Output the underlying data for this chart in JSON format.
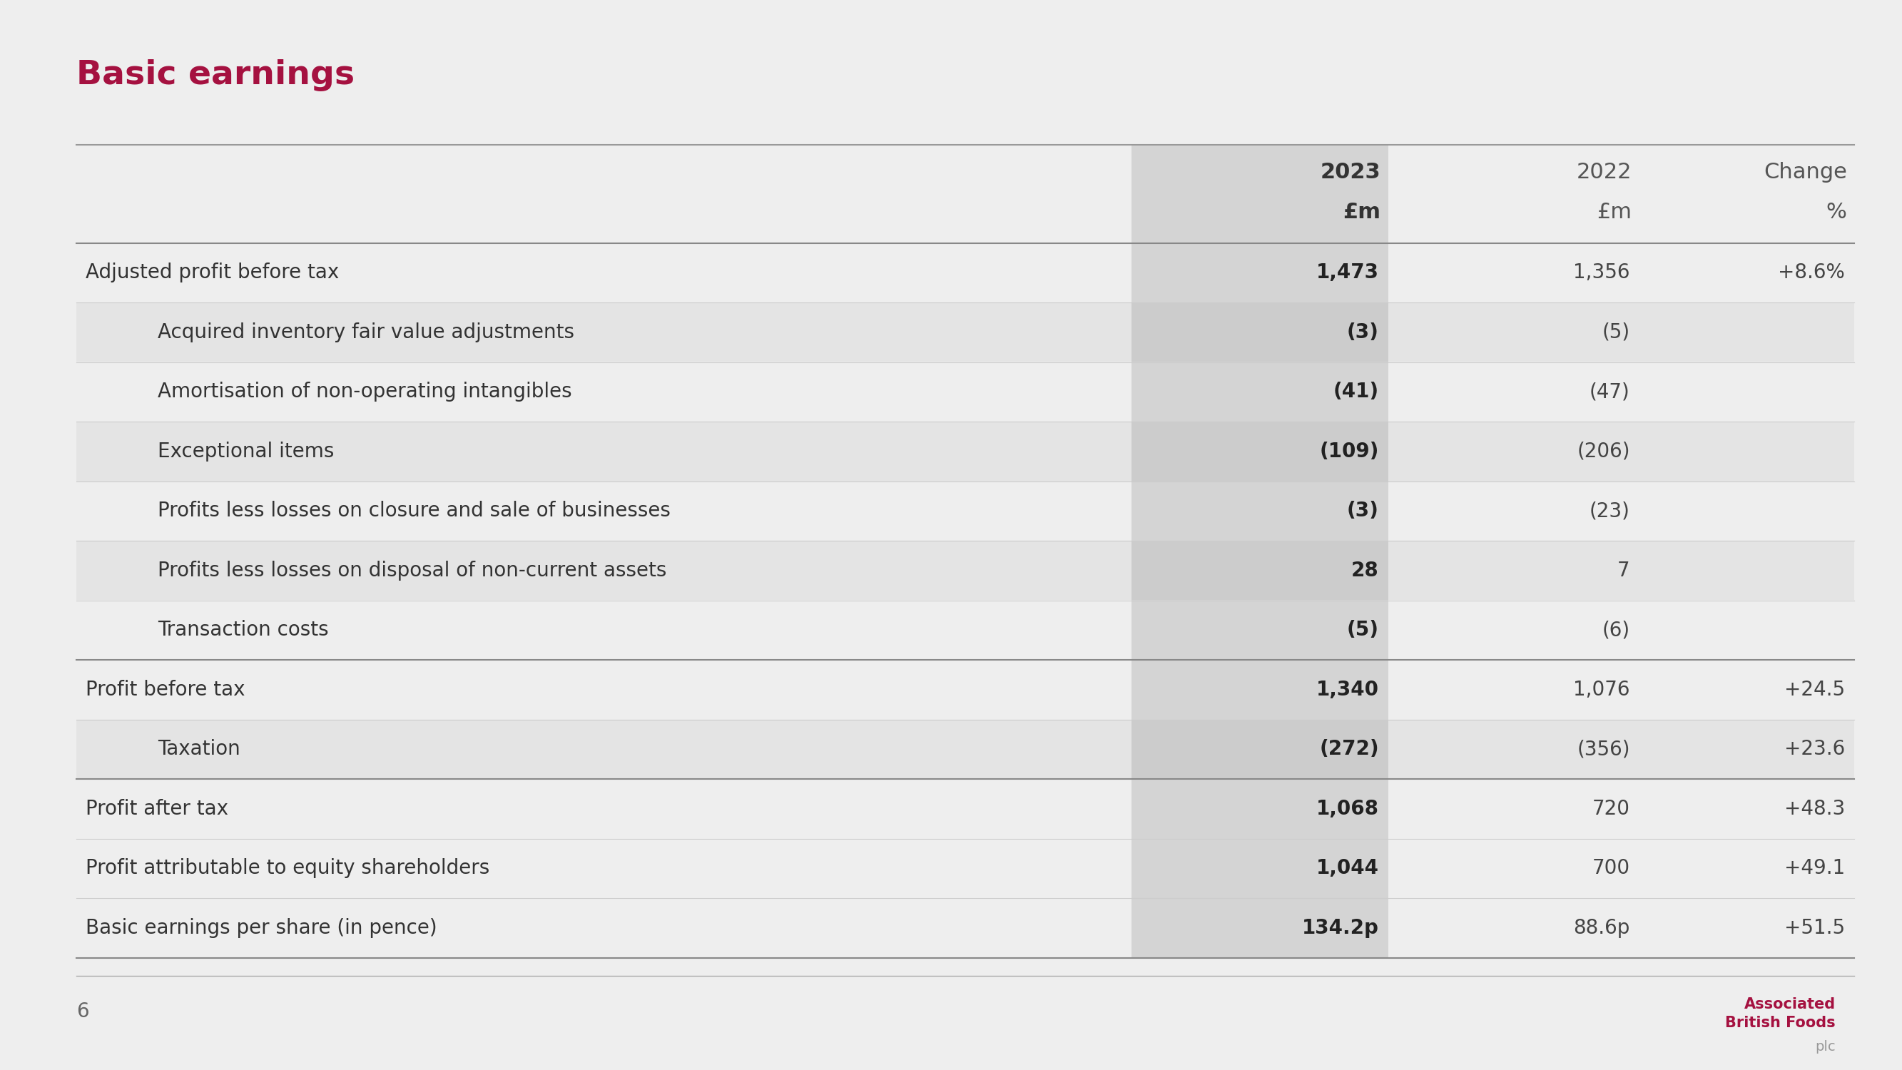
{
  "title": "Basic earnings",
  "title_color": "#a51140",
  "slide_bg": "#eeeeee",
  "col2023_highlight_bg": "#d4d4d4",
  "row_alt_bg": "#e4e4e4",
  "rows": [
    {
      "label": "Adjusted profit before tax",
      "val2023": "1,473",
      "val2022": "1,356",
      "change": "+8.6%",
      "indent": false,
      "bold_2023": true,
      "thick_line_above": true,
      "thick_line_below": false,
      "alt_bg": false
    },
    {
      "label": "Acquired inventory fair value adjustments",
      "val2023": "(3)",
      "val2022": "(5)",
      "change": "",
      "indent": true,
      "bold_2023": true,
      "thick_line_above": false,
      "thick_line_below": false,
      "alt_bg": true
    },
    {
      "label": "Amortisation of non-operating intangibles",
      "val2023": "(41)",
      "val2022": "(47)",
      "change": "",
      "indent": true,
      "bold_2023": true,
      "thick_line_above": false,
      "thick_line_below": false,
      "alt_bg": false
    },
    {
      "label": "Exceptional items",
      "val2023": "(109)",
      "val2022": "(206)",
      "change": "",
      "indent": true,
      "bold_2023": true,
      "thick_line_above": false,
      "thick_line_below": false,
      "alt_bg": true
    },
    {
      "label": "Profits less losses on closure and sale of businesses",
      "val2023": "(3)",
      "val2022": "(23)",
      "change": "",
      "indent": true,
      "bold_2023": true,
      "thick_line_above": false,
      "thick_line_below": false,
      "alt_bg": false
    },
    {
      "label": "Profits less losses on disposal of non-current assets",
      "val2023": "28",
      "val2022": "7",
      "change": "",
      "indent": true,
      "bold_2023": true,
      "thick_line_above": false,
      "thick_line_below": false,
      "alt_bg": true
    },
    {
      "label": "Transaction costs",
      "val2023": "(5)",
      "val2022": "(6)",
      "change": "",
      "indent": true,
      "bold_2023": true,
      "thick_line_above": false,
      "thick_line_below": false,
      "alt_bg": false
    },
    {
      "label": "Profit before tax",
      "val2023": "1,340",
      "val2022": "1,076",
      "change": "+24.5",
      "indent": false,
      "bold_2023": true,
      "thick_line_above": true,
      "thick_line_below": false,
      "alt_bg": false
    },
    {
      "label": "Taxation",
      "val2023": "(272)",
      "val2022": "(356)",
      "change": "+23.6",
      "indent": true,
      "bold_2023": true,
      "thick_line_above": false,
      "thick_line_below": false,
      "alt_bg": true
    },
    {
      "label": "Profit after tax",
      "val2023": "1,068",
      "val2022": "720",
      "change": "+48.3",
      "indent": false,
      "bold_2023": true,
      "thick_line_above": true,
      "thick_line_below": false,
      "alt_bg": false
    },
    {
      "label": "Profit attributable to equity shareholders",
      "val2023": "1,044",
      "val2022": "700",
      "change": "+49.1",
      "indent": false,
      "bold_2023": true,
      "thick_line_above": false,
      "thick_line_below": false,
      "alt_bg": false
    },
    {
      "label": "Basic earnings per share (in pence)",
      "val2023": "134.2p",
      "val2022": "88.6p",
      "change": "+51.5",
      "indent": false,
      "bold_2023": true,
      "thick_line_above": false,
      "thick_line_below": true,
      "alt_bg": false
    }
  ],
  "footer_number": "6",
  "logo_line1": "Associated",
  "logo_line2": "British Foods",
  "logo_line3": "plc",
  "logo_color": "#a51140",
  "logo_plc_color": "#999999"
}
